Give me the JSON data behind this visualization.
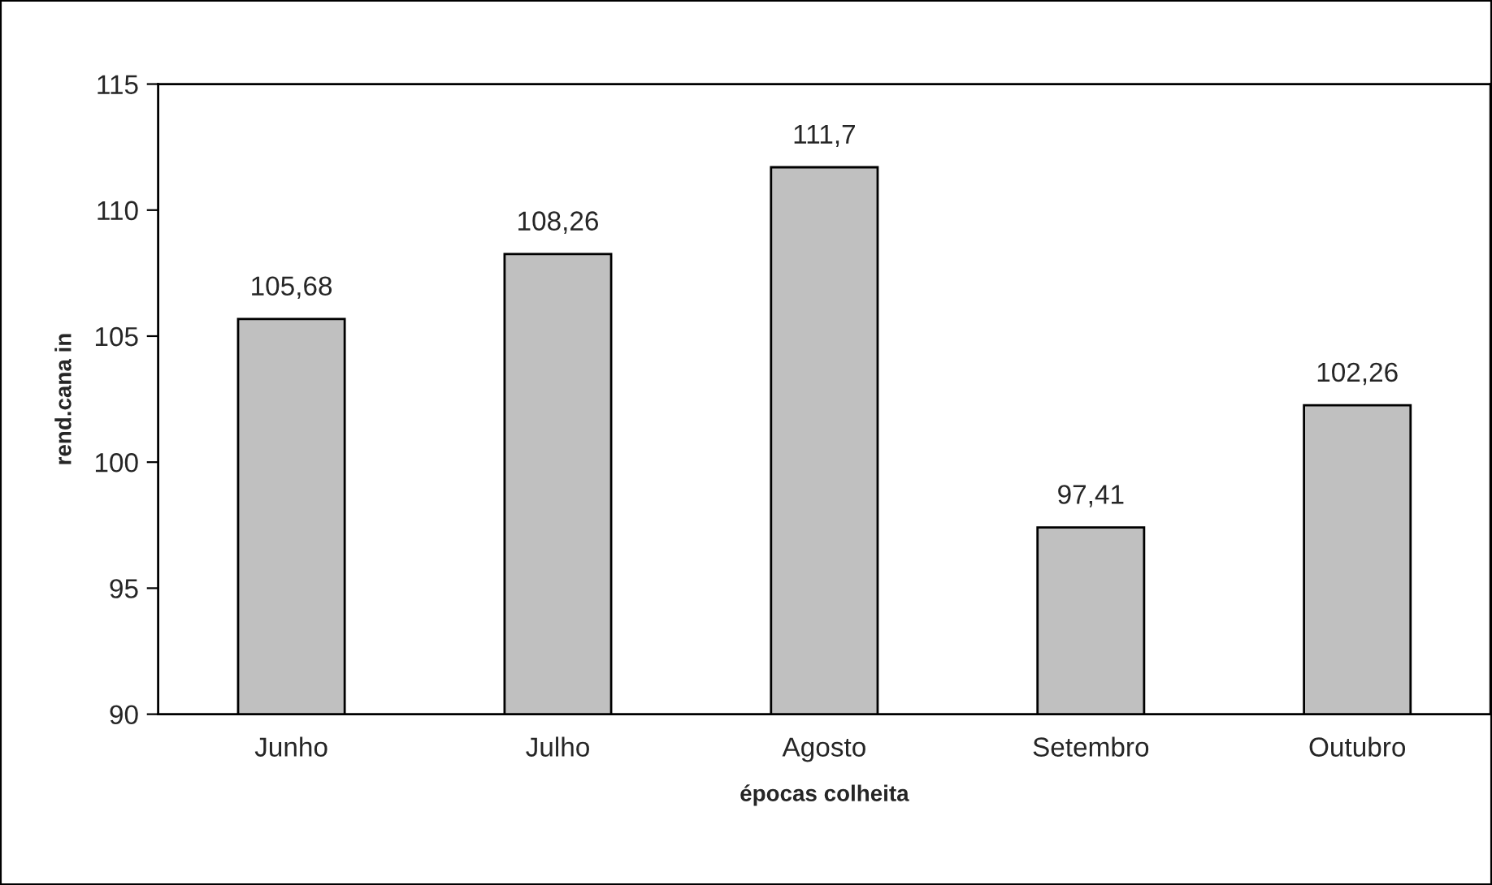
{
  "chart_data": {
    "type": "bar",
    "xlabel": "épocas colheita",
    "ylabel": "rend.cana in",
    "categories": [
      "Junho",
      "Julho",
      "Agosto",
      "Setembro",
      "Outubro"
    ],
    "values": [
      105.68,
      108.26,
      111.7,
      97.41,
      102.26
    ],
    "value_labels": [
      "105,68",
      "108,26",
      "111,7",
      "97,41",
      "102,26"
    ],
    "color": "#c0c0c0",
    "ylim": [
      90,
      115
    ],
    "yticks": [
      90,
      95,
      100,
      105,
      110,
      115
    ],
    "grid": false
  }
}
